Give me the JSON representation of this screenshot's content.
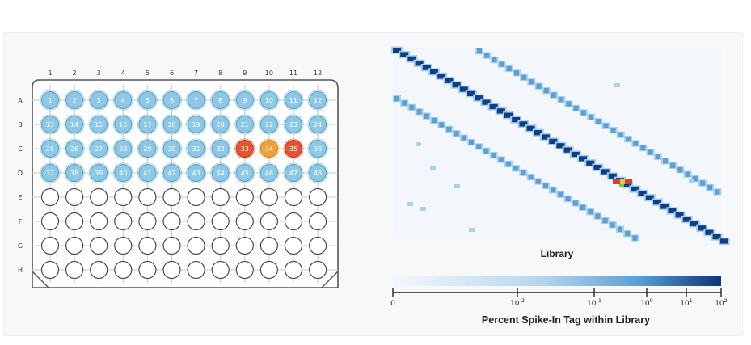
{
  "plate": {
    "columns": [
      "1",
      "2",
      "3",
      "4",
      "5",
      "6",
      "7",
      "8",
      "9",
      "10",
      "11",
      "12"
    ],
    "rows": [
      "A",
      "B",
      "C",
      "D",
      "E",
      "F",
      "G",
      "H"
    ],
    "filled_rows": 4,
    "colors": {
      "filled": "#8ec8e4",
      "filled_stroke": "#5aa6cc",
      "highlight_red": "#e5542f",
      "highlight_orange": "#f0a13a",
      "empty_fill": "#ffffff",
      "empty_stroke": "#4a4a4a"
    },
    "highlights": {
      "33": "red",
      "34": "orange",
      "35": "red"
    }
  },
  "heatmap": {
    "xlabel": "Library",
    "colors": {
      "background": "#f3f7fc",
      "light": "#a9d0ec",
      "mid": "#5b9fd3",
      "dark": "#0e3f84",
      "hot_red": "#e23b22",
      "hot_yellow": "#f4c130",
      "hot_green": "#8fbf57"
    }
  },
  "colorbar": {
    "title": "Percent Spike-In Tag within Library",
    "ticks": [
      {
        "base": "0",
        "exp": ""
      },
      {
        "base": "10",
        "exp": "-2"
      },
      {
        "base": "10",
        "exp": "-1"
      },
      {
        "base": "10",
        "exp": "0"
      },
      {
        "base": "10",
        "exp": "1"
      },
      {
        "base": "10",
        "exp": "2"
      }
    ],
    "colors": {
      "start": "#f3f7fc",
      "end": "#0b3577"
    }
  }
}
